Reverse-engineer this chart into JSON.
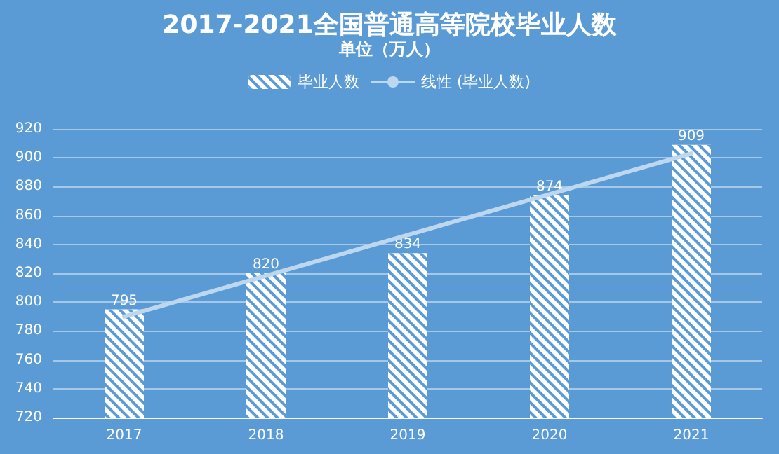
{
  "chart_data": {
    "type": "bar",
    "title": "2017-2021全国普通高等院校毕业人数",
    "subtitle": "单位（万人）",
    "categories": [
      "2017",
      "2018",
      "2019",
      "2020",
      "2021"
    ],
    "series": [
      {
        "name": "毕业人数",
        "color": "#ffffff",
        "values": [
          795,
          820,
          834,
          874,
          909
        ],
        "value_labels": [
          "795",
          "820",
          "834",
          "874",
          "909"
        ]
      },
      {
        "name": "线性 (毕业人数)",
        "type": "line",
        "color": "#bdd7ee",
        "values": [
          790,
          null,
          null,
          null,
          903
        ]
      }
    ],
    "ylim": [
      720,
      920
    ],
    "yticks": [
      720,
      740,
      760,
      780,
      800,
      820,
      840,
      860,
      880,
      900,
      920
    ],
    "grid": "y",
    "legend": "top",
    "line_style": "solid"
  }
}
